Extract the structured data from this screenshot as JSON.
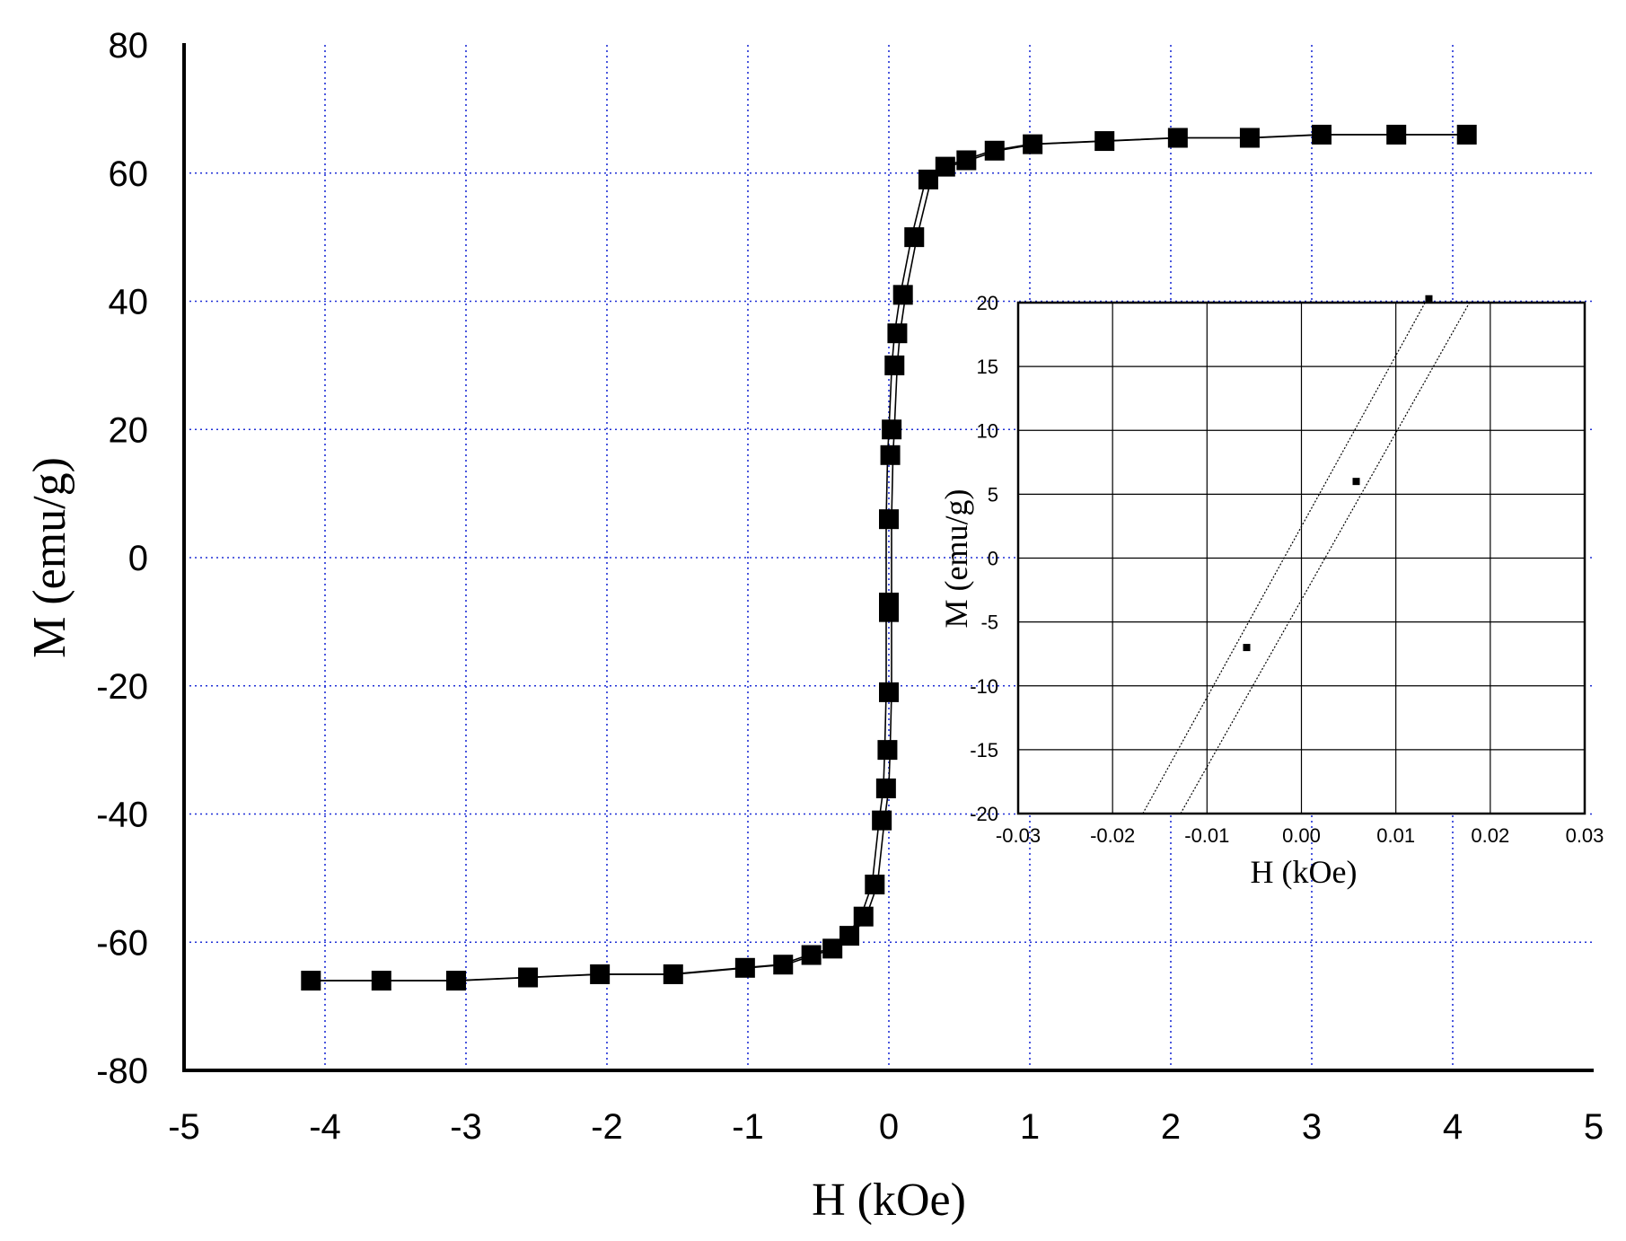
{
  "chart_data": [
    {
      "type": "scatter",
      "xlabel": "H (kOe)",
      "ylabel": "M (emu/g)",
      "xlim": [
        -5,
        5
      ],
      "ylim": [
        -80,
        80
      ],
      "xticks": [
        "-5",
        "-4",
        "-3",
        "-2",
        "-1",
        "0",
        "1",
        "2",
        "3",
        "4",
        "5"
      ],
      "yticks": [
        "-80",
        "-60",
        "-40",
        "-20",
        "0",
        "20",
        "40",
        "60",
        "80"
      ],
      "grid": true,
      "grid_color": "#1f2fd6",
      "marker_color": "#000000",
      "series": [
        {
          "x": [
            -4.1,
            -3.6,
            -3.07,
            -2.56,
            -2.05,
            -1.53,
            -1.02,
            -0.75,
            -0.55,
            -0.4,
            -0.28,
            -0.18,
            -0.1,
            -0.05,
            -0.02,
            -0.01,
            0.0,
            0.0,
            0.0,
            0.0,
            0.01,
            0.02,
            0.04,
            0.06,
            0.1,
            0.18,
            0.28,
            0.4,
            0.55,
            0.75,
            1.02,
            1.53,
            2.05,
            2.56,
            3.07,
            3.6,
            4.1
          ],
          "y": [
            -66,
            -66,
            -66,
            -65.5,
            -65,
            -65,
            -64,
            -63.5,
            -62,
            -61,
            -59,
            -56,
            -51,
            -41,
            -36,
            -30,
            -21,
            -8.5,
            -7,
            6,
            16,
            20,
            30,
            35,
            41,
            50,
            59,
            61,
            62,
            63.5,
            64.5,
            65,
            65.5,
            65.5,
            66,
            66,
            66
          ]
        }
      ]
    },
    {
      "type": "line",
      "inset": true,
      "xlabel": "H (kOe)",
      "ylabel": "M (emu/g)",
      "xlim": [
        -0.03,
        0.03
      ],
      "ylim": [
        -20,
        20
      ],
      "xticks": [
        "-0.03",
        "-0.02",
        "-0.01",
        "0.00",
        "0.01",
        "0.02",
        "0.03"
      ],
      "yticks": [
        "-20",
        "-15",
        "-10",
        "-5",
        "0",
        "5",
        "10",
        "15",
        "20"
      ],
      "grid": true,
      "series": [
        {
          "x": [
            -0.0168,
            0.0131
          ],
          "y": [
            -20,
            20
          ]
        },
        {
          "x": [
            -0.0128,
            0.0178
          ],
          "y": [
            -20,
            20
          ]
        }
      ],
      "points": {
        "x": [
          -0.0058,
          0.0058,
          0.0135
        ],
        "y": [
          -7,
          6,
          20.3
        ]
      }
    }
  ]
}
